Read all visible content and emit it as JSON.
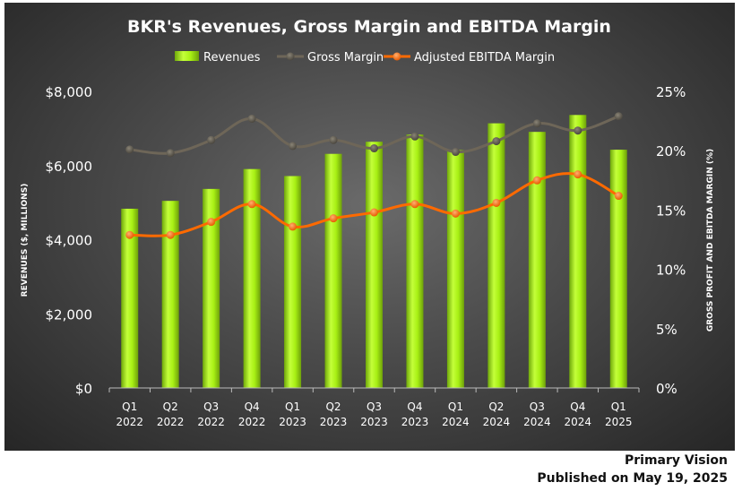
{
  "chart_data": {
    "type": "bar+line",
    "title": "BKR's Revenues, Gross Margin and EBITDA Margin",
    "categories": [
      "Q1 2022",
      "Q2 2022",
      "Q3 2022",
      "Q4 2022",
      "Q1 2023",
      "Q2 2023",
      "Q3 2023",
      "Q4 2023",
      "Q1 2024",
      "Q2 2024",
      "Q3 2024",
      "Q4 2024",
      "Q1 2025"
    ],
    "category_lines": [
      [
        "Q1",
        "2022"
      ],
      [
        "Q2",
        "2022"
      ],
      [
        "Q3",
        "2022"
      ],
      [
        "Q4",
        "2022"
      ],
      [
        "Q1",
        "2023"
      ],
      [
        "Q2",
        "2023"
      ],
      [
        "Q3",
        "2023"
      ],
      [
        "Q4",
        "2023"
      ],
      [
        "Q1",
        "2024"
      ],
      [
        "Q2",
        "2024"
      ],
      [
        "Q3",
        "2024"
      ],
      [
        "Q4",
        "2024"
      ],
      [
        "Q1",
        "2025"
      ]
    ],
    "series": [
      {
        "name": "Revenues",
        "axis": "left",
        "kind": "bar",
        "color": "#9ade10",
        "values": [
          4835,
          5047,
          5369,
          5905,
          5716,
          6315,
          6641,
          6835,
          6418,
          7139,
          6908,
          7364,
          6427
        ]
      },
      {
        "name": "Gross Margin",
        "axis": "right",
        "kind": "line",
        "color": "#6e6658",
        "values": [
          20.1,
          19.8,
          20.9,
          22.7,
          20.4,
          20.9,
          20.2,
          21.2,
          19.9,
          20.8,
          22.3,
          21.7,
          22.9
        ]
      },
      {
        "name": "Adjusted EBITDA Margin",
        "axis": "right",
        "kind": "line",
        "color": "#ff6a00",
        "values": [
          12.9,
          12.9,
          14.0,
          15.5,
          13.6,
          14.3,
          14.8,
          15.5,
          14.7,
          15.6,
          17.5,
          18.0,
          16.2
        ]
      }
    ],
    "ylabel": "REVENUES ($, MILLIONS)",
    "y2label": "GROSS PROFIT AND EBITDA MARGIN (%)",
    "ylim": [
      0,
      8000
    ],
    "y2lim": [
      0,
      25
    ],
    "yticks": [
      "$0",
      "$2,000",
      "$4,000",
      "$6,000",
      "$8,000"
    ],
    "y2ticks": [
      "0%",
      "5%",
      "10%",
      "15%",
      "20%",
      "25%"
    ],
    "grid": false,
    "legend": "top"
  },
  "footer": {
    "source": "Primary Vision",
    "published": "Published on May 19, 2025"
  }
}
